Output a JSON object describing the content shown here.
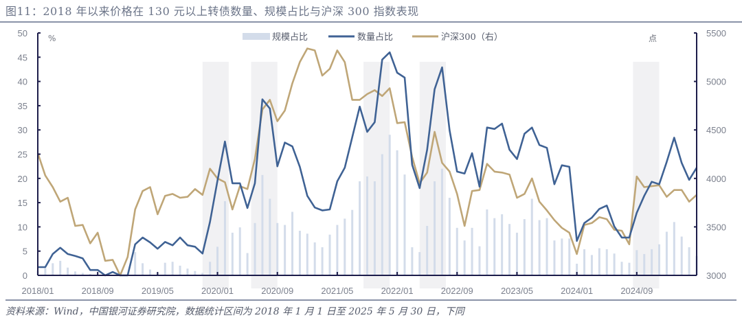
{
  "header": {
    "title": "图11：2018 年以来价格在 130 元以上转债数量、规模占比与沪深 300 指数表现"
  },
  "footer": {
    "source": "资料来源：Wind，中国银河证券研究院，数据统计区间为 2018 年 1 月 1 日至 2025 年 5 月 30 日，下同"
  },
  "colors": {
    "bars": "#d3dcea",
    "count_line": "#3f6294",
    "hs300_line": "#bfa677",
    "shade": "#f1f1f3",
    "axis": "#1c1c4a"
  },
  "axes": {
    "left_unit": "%",
    "right_unit": "点"
  },
  "chart_data": {
    "type": "bar+line",
    "title": "2018 年以来价格在 130 元以上转债数量、规模占比与沪深 300 指数表现",
    "xlabel": "",
    "ylabel": "%",
    "ylabel_right": "点",
    "ylim": [
      0,
      50
    ],
    "ylim_right": [
      3000,
      5500
    ],
    "yticks": [
      0,
      5,
      10,
      15,
      20,
      25,
      30,
      35,
      40,
      45,
      50
    ],
    "yticks_right": [
      3000,
      3500,
      4000,
      4500,
      5000,
      5500
    ],
    "xtick_labels": [
      "2018/01",
      "2018/09",
      "2019/05",
      "2020/01",
      "2020/09",
      "2021/05",
      "2022/01",
      "2022/09",
      "2023/05",
      "2024/01",
      "2024/09"
    ],
    "xtick_index": [
      0,
      8,
      16,
      24,
      32,
      40,
      48,
      56,
      64,
      72,
      80
    ],
    "legend": [
      "规模占比",
      "数量占比",
      "沪深300（右）"
    ],
    "legend_position": "top",
    "grid": false,
    "x_start": "2018/01",
    "x_end": "2025/05",
    "shaded_ranges_index": [
      [
        22,
        25.5
      ],
      [
        28.5,
        32
      ],
      [
        43.5,
        47
      ],
      [
        51,
        54.5
      ],
      [
        79.5,
        83
      ]
    ],
    "series": [
      {
        "name": "规模占比",
        "type": "bar",
        "axis": "left",
        "values": [
          1.0,
          1.5,
          2.5,
          3.0,
          1.6,
          0.8,
          0.5,
          0.3,
          0.2,
          0.0,
          0.0,
          0.0,
          0.0,
          4.8,
          2.5,
          1.2,
          0.5,
          2.6,
          2.8,
          2.0,
          1.4,
          0.9,
          0.5,
          2.8,
          5.9,
          15.3,
          8.8,
          9.9,
          4.6,
          10.8,
          20.7,
          15.8,
          10.8,
          10.4,
          13.1,
          9.2,
          8.6,
          6.8,
          5.8,
          8.4,
          10.4,
          11.7,
          13.5,
          19.4,
          20.4,
          19.4,
          25.0,
          29.0,
          25.8,
          20.8,
          5.8,
          4.8,
          10.2,
          19.4,
          22.0,
          16.0,
          9.8,
          7.2,
          9.8,
          6.0,
          13.6,
          11.8,
          12.6,
          10.6,
          8.8,
          11.6,
          15.8,
          11.4,
          11.8,
          7.2,
          7.6,
          7.6,
          2.4,
          5.4,
          4.2,
          5.6,
          5.4,
          4.5,
          2.8,
          2.6,
          5.2,
          4.4,
          5.4,
          6.4,
          9.0,
          11.0,
          8.0,
          5.8,
          4.0
        ]
      },
      {
        "name": "数量占比",
        "type": "line",
        "axis": "left",
        "values": [
          1.7,
          1.7,
          4.4,
          5.7,
          4.4,
          4.0,
          3.5,
          1.1,
          1.1,
          0.0,
          0.7,
          0.0,
          0.0,
          6.4,
          7.8,
          6.8,
          5.5,
          6.9,
          6.2,
          7.8,
          6.2,
          5.9,
          4.5,
          11.0,
          19.5,
          27.6,
          19.0,
          19.0,
          13.9,
          19.0,
          36.3,
          34.4,
          22.5,
          27.4,
          26.6,
          22.4,
          16.4,
          14.0,
          13.4,
          13.6,
          19.4,
          22.2,
          28.5,
          34.8,
          29.6,
          31.6,
          44.5,
          46.0,
          41.8,
          40.8,
          22.8,
          18.0,
          25.9,
          38.4,
          42.9,
          29.9,
          21.4,
          21.0,
          25.2,
          18.3,
          30.5,
          30.2,
          31.3,
          25.9,
          24.0,
          29.2,
          30.5,
          26.9,
          26.3,
          18.8,
          22.7,
          22.4,
          7.1,
          10.8,
          11.9,
          13.7,
          14.4,
          10.1,
          7.8,
          7.8,
          12.9,
          16.4,
          19.3,
          18.8,
          23.4,
          28.4,
          23.2,
          19.7,
          22.2
        ]
      },
      {
        "name": "沪深300（右）",
        "type": "line",
        "axis": "right",
        "values": [
          4260,
          4030,
          3910,
          3760,
          3800,
          3510,
          3520,
          3330,
          3440,
          3150,
          3160,
          3000,
          3190,
          3680,
          3870,
          3910,
          3630,
          3820,
          3840,
          3800,
          3810,
          3890,
          3830,
          4100,
          4000,
          3960,
          3680,
          3920,
          3890,
          4200,
          4710,
          4810,
          4590,
          4700,
          4980,
          5200,
          5340,
          5320,
          5060,
          5130,
          5320,
          5200,
          4810,
          4810,
          4870,
          4910,
          4850,
          4930,
          4570,
          4580,
          4220,
          3950,
          4060,
          4480,
          4160,
          4070,
          3840,
          3510,
          3870,
          3880,
          4150,
          4070,
          4060,
          4040,
          3800,
          3840,
          4000,
          3760,
          3670,
          3570,
          3490,
          3440,
          3220,
          3520,
          3540,
          3600,
          3580,
          3470,
          3460,
          3320,
          4020,
          3910,
          3920,
          3930,
          3810,
          3880,
          3880,
          3760,
          3830
        ]
      }
    ]
  }
}
